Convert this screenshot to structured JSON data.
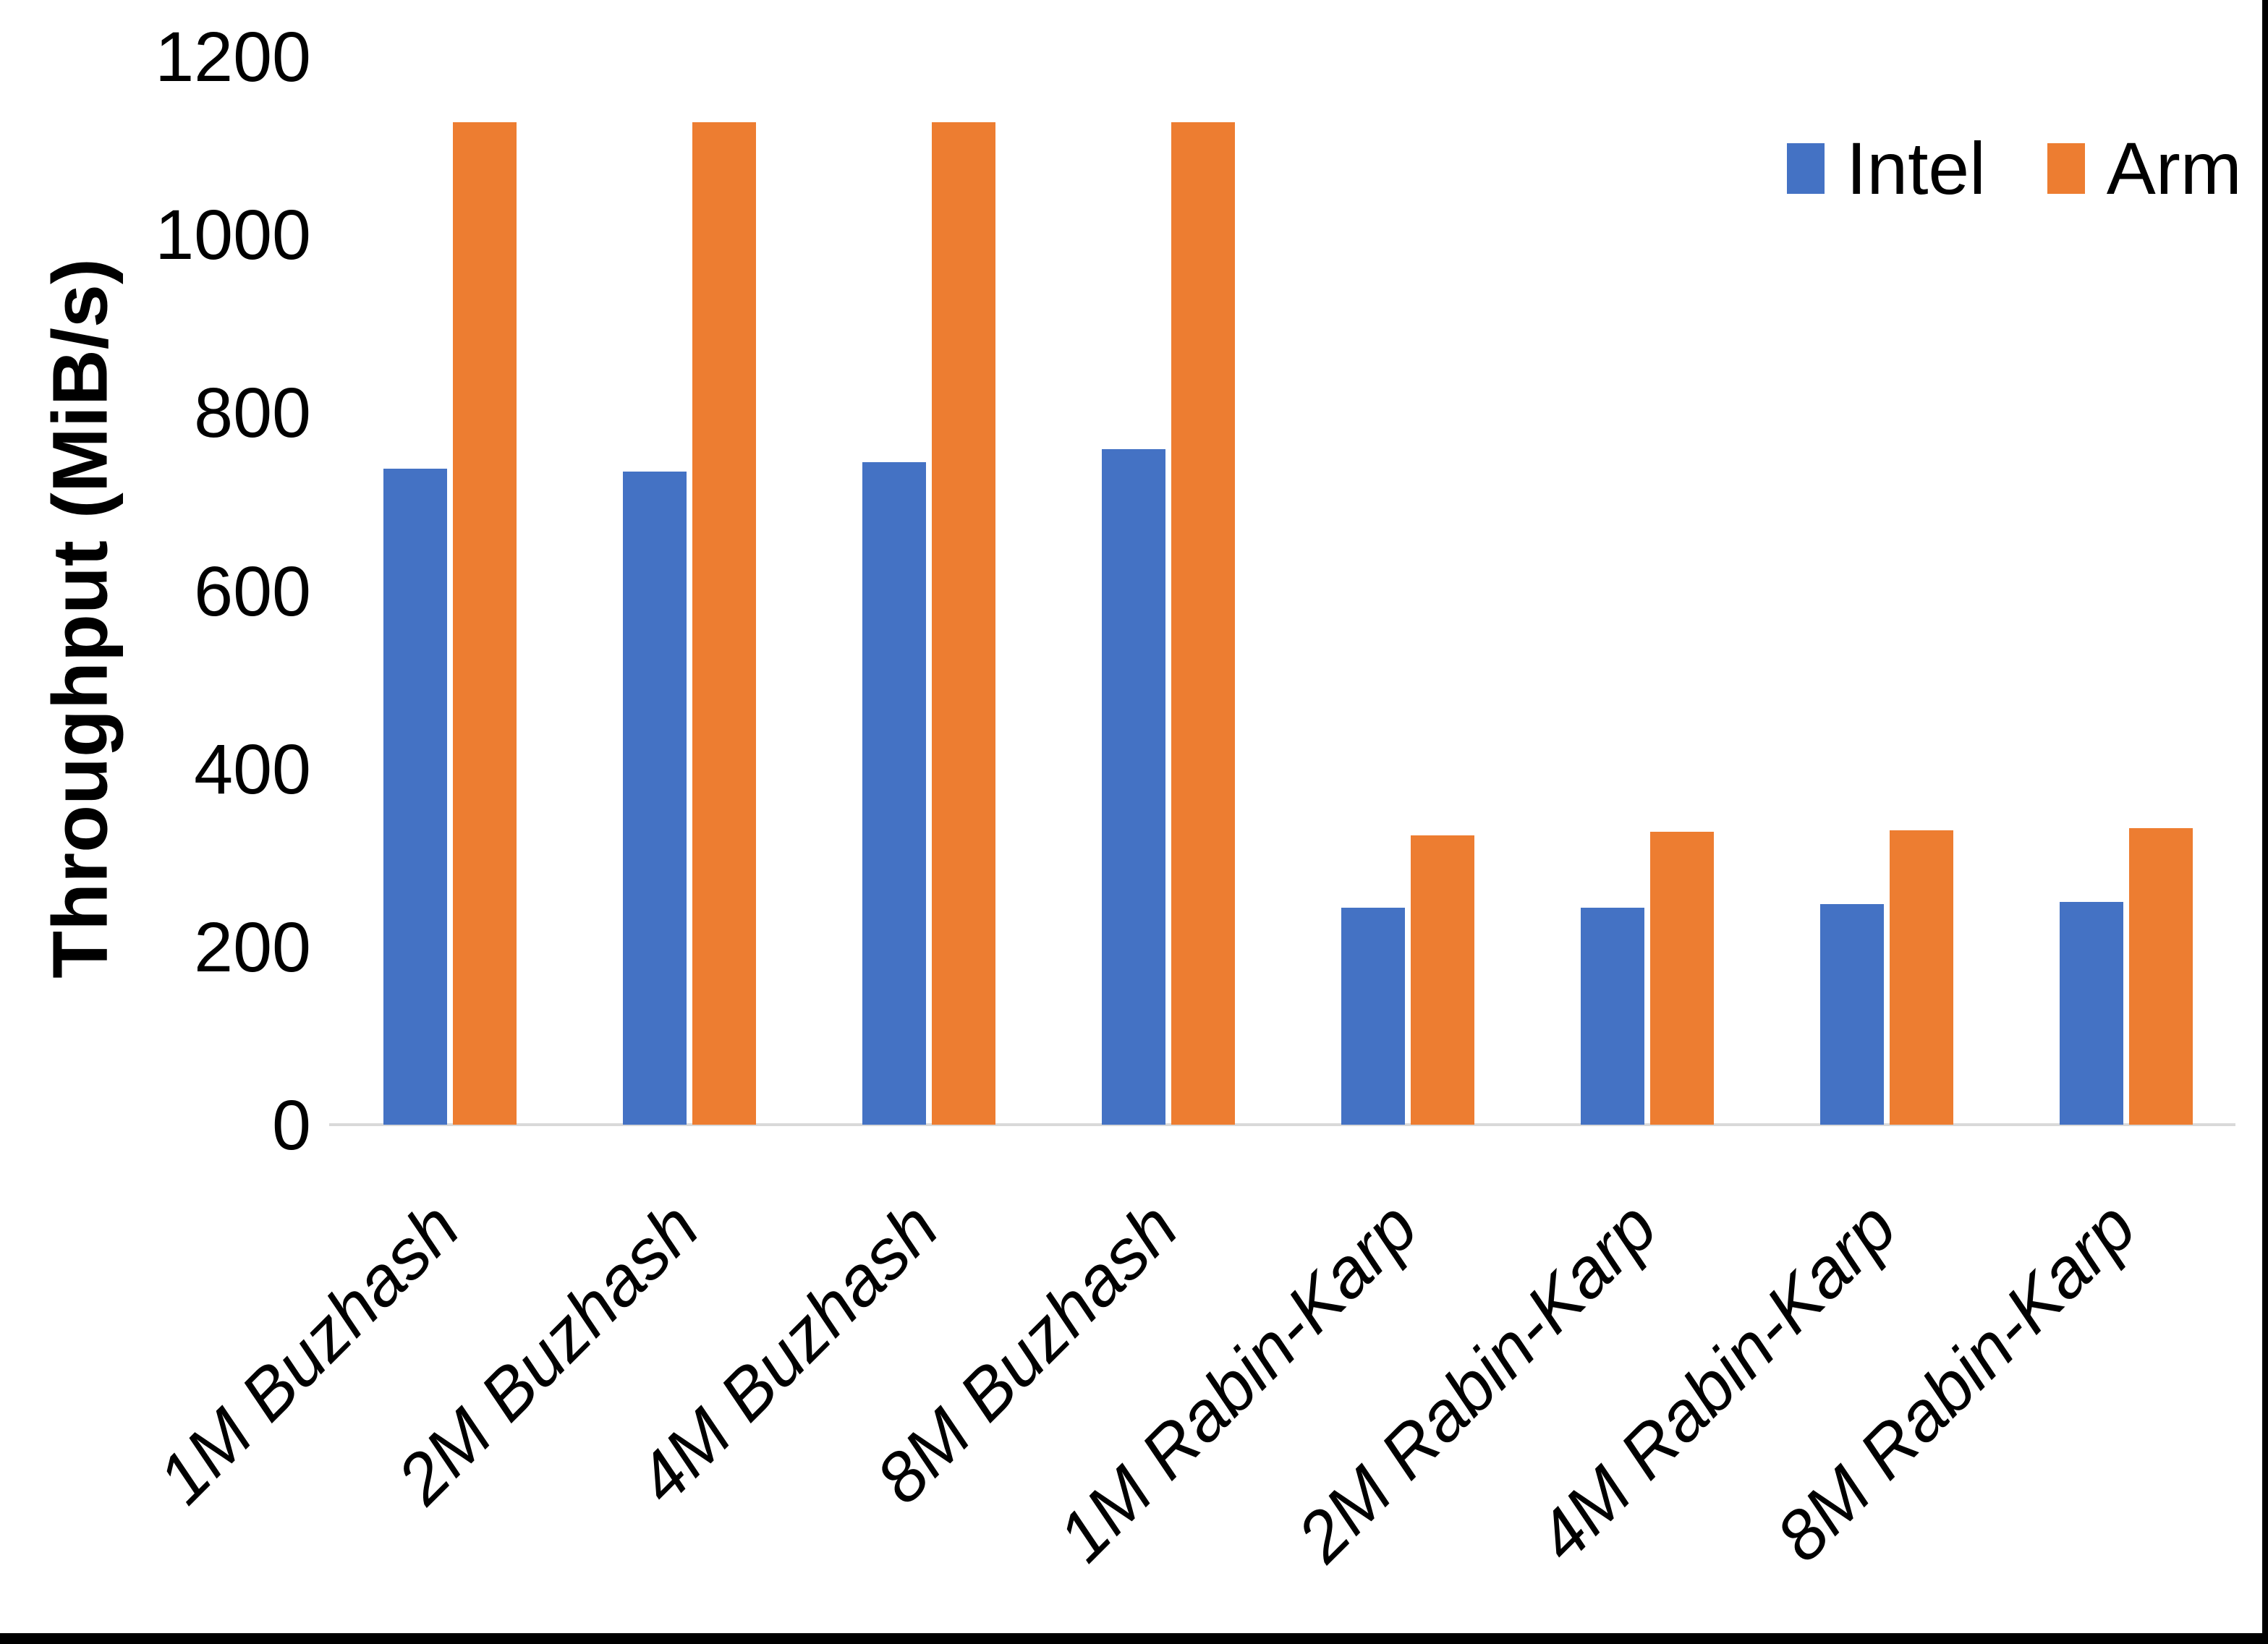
{
  "chart_data": {
    "type": "bar",
    "title": "",
    "xlabel": "",
    "ylabel": "Throughput (MiB/s)",
    "categories": [
      "1M Buzhash",
      "2M Buzhash",
      "4M Buzhash",
      "8M Buzhash",
      "1M Rabin-Karp",
      "2M Rabin-Karp",
      "4M Rabin-Karp",
      "8M Rabin-Karp"
    ],
    "series": [
      {
        "name": "Intel",
        "color": "#4472C4",
        "values": [
          737,
          734,
          744,
          759,
          244,
          244,
          248,
          250
        ]
      },
      {
        "name": "Arm",
        "color": "#ED7D31",
        "values": [
          1126,
          1126,
          1126,
          1126,
          325,
          329,
          331,
          333
        ]
      }
    ],
    "ylim": [
      0,
      1200
    ],
    "yticks": [
      0,
      200,
      400,
      600,
      800,
      1000,
      1200
    ],
    "grid": false,
    "legend_position": "top-right"
  },
  "colors": {
    "axis_line": "#D9D9D9",
    "text": "#000000",
    "background": "#FFFFFF",
    "border": "#000000"
  }
}
